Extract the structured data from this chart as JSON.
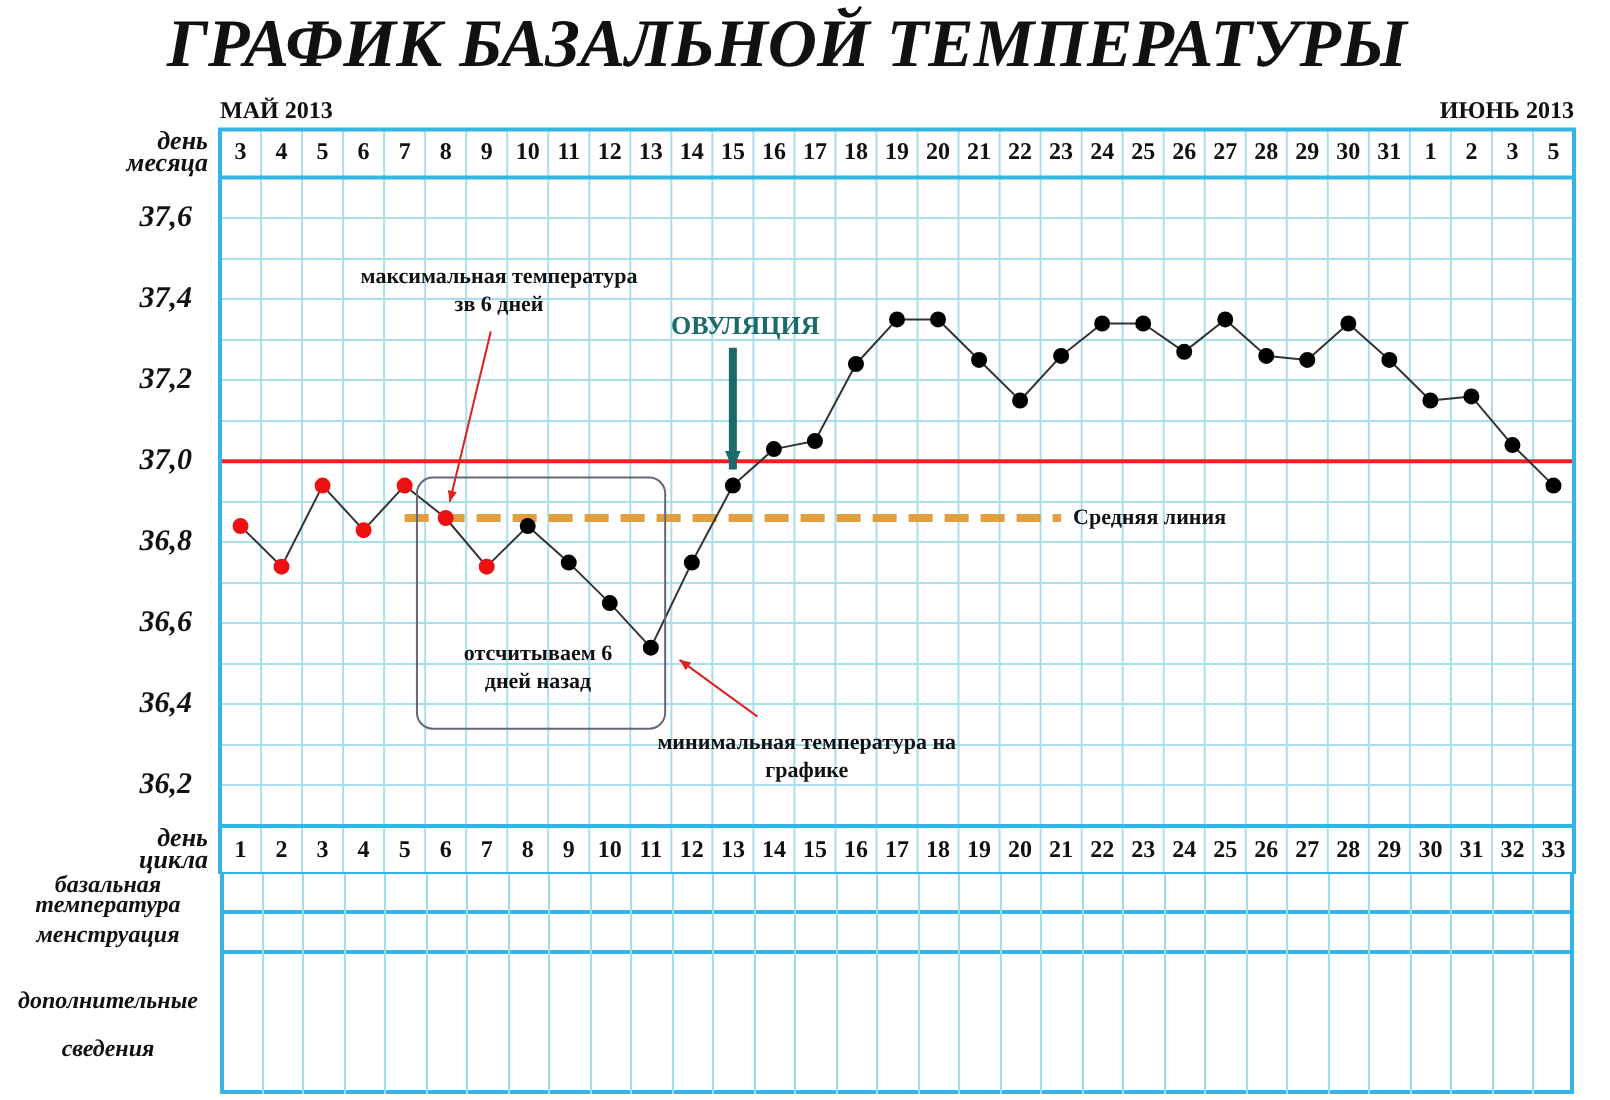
{
  "chart_data": {
    "type": "line",
    "title": "ГРАФИК БАЗАЛЬНОЙ ТЕМПЕРАТУРЫ",
    "xlabel": "день месяца",
    "x2label": "день цикла",
    "categories": [
      "3",
      "4",
      "5",
      "6",
      "7",
      "8",
      "9",
      "10",
      "11",
      "12",
      "13",
      "14",
      "15",
      "16",
      "17",
      "18",
      "19",
      "20",
      "21",
      "22",
      "23",
      "24",
      "25",
      "26",
      "27",
      "28",
      "29",
      "30",
      "31",
      "1",
      "2",
      "3",
      "5"
    ],
    "x2lim": [
      0.5,
      33.5
    ],
    "x2ticks": [
      1,
      2,
      3,
      4,
      5,
      6,
      7,
      8,
      9,
      10,
      11,
      12,
      13,
      14,
      15,
      16,
      17,
      18,
      19,
      20,
      21,
      22,
      23,
      24,
      25,
      26,
      27,
      28,
      29,
      30,
      31,
      32,
      33
    ],
    "ylim": [
      36.1,
      37.7
    ],
    "yticks": [
      {
        "value": 36.1,
        "label": null
      },
      {
        "value": 36.2,
        "label": "36,2"
      },
      {
        "value": 36.3,
        "label": null
      },
      {
        "value": 36.4,
        "label": "36,4"
      },
      {
        "value": 36.5,
        "label": null
      },
      {
        "value": 36.6,
        "label": "36,6"
      },
      {
        "value": 36.7,
        "label": null
      },
      {
        "value": 36.8,
        "label": "36,8"
      },
      {
        "value": 36.9,
        "label": null
      },
      {
        "value": 37.0,
        "label": "37,0"
      },
      {
        "value": 37.1,
        "label": null
      },
      {
        "value": 37.2,
        "label": "37,2"
      },
      {
        "value": 37.3,
        "label": null
      },
      {
        "value": 37.4,
        "label": "37,4"
      },
      {
        "value": 37.5,
        "label": null
      },
      {
        "value": 37.6,
        "label": "37,6"
      },
      {
        "value": 37.7,
        "label": null
      }
    ],
    "grid": true,
    "legend": false,
    "marker": "circle",
    "line_style": "solid",
    "series": [
      {
        "color": "#333333",
        "colors": [
          "#ee1111",
          "#ee1111",
          "#ee1111",
          "#ee1111",
          "#ee1111",
          "#ee1111",
          "#ee1111",
          "#000000",
          "#000000",
          "#000000",
          "#000000",
          "#000000",
          "#000000",
          "#000000",
          "#000000",
          "#000000",
          "#000000",
          "#000000",
          "#000000",
          "#000000",
          "#000000",
          "#000000",
          "#000000",
          "#000000",
          "#000000",
          "#000000",
          "#000000",
          "#000000",
          "#000000",
          "#000000",
          "#000000",
          "#000000",
          "#000000"
        ],
        "values": [
          36.84,
          36.74,
          36.94,
          36.83,
          36.94,
          36.86,
          36.74,
          36.84,
          36.75,
          36.65,
          36.54,
          36.75,
          36.94,
          37.03,
          37.05,
          37.24,
          37.35,
          37.35,
          37.25,
          37.15,
          37.26,
          37.34,
          37.34,
          37.27,
          37.35,
          37.26,
          37.25,
          37.34,
          37.25,
          37.15,
          37.16,
          37.04,
          36.94
        ]
      },
      {
        "name": "Средняя линия",
        "type": "line",
        "color": "#e0a040",
        "line_style": "dashed",
        "marker": "none",
        "values": [
          null,
          null,
          null,
          null,
          36.86,
          36.86,
          36.86,
          36.86,
          36.86,
          36.86,
          36.86,
          36.86,
          36.86,
          36.86,
          36.86,
          36.86,
          36.86,
          36.86,
          36.86,
          36.86,
          36.86,
          null,
          null,
          null,
          null,
          null,
          null,
          null,
          null,
          null,
          null,
          null,
          null
        ]
      }
    ],
    "ref_lines": [
      {
        "axis": "y",
        "value": 37.0,
        "color": "#ee2222"
      }
    ],
    "annotations": [
      "МАЙ 2013",
      "ИЮНЬ 2013",
      "максимальная температура зв 6 дней",
      "ОВУЛЯЦИЯ",
      "отсчитываем 6 дней назад",
      "минимальная температура на графике",
      "базальная температура",
      "менструация",
      "дополнительные сведения"
    ]
  }
}
